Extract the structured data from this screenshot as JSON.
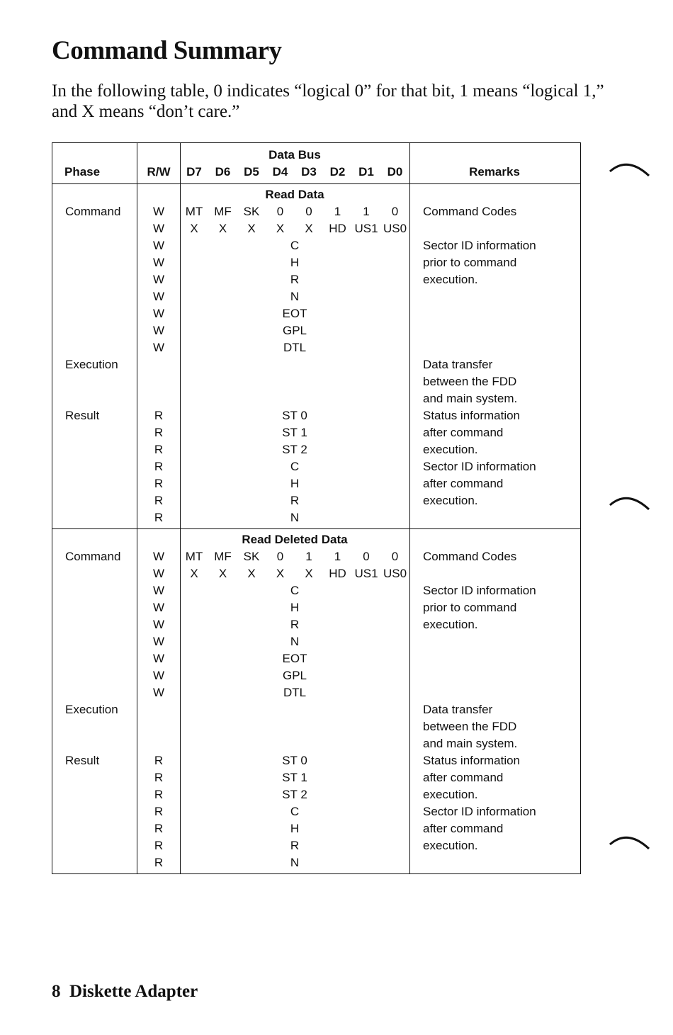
{
  "title": "Command Summary",
  "intro": "In the following table, 0 indicates “logical 0” for that bit, 1 means “logical 1,” and X means “don’t care.”",
  "table": {
    "headers": {
      "phase": "Phase",
      "rw": "R/W",
      "data_bus": "Data Bus",
      "bits": [
        "D7",
        "D6",
        "D5",
        "D4",
        "D3",
        "D2",
        "D1",
        "D0"
      ],
      "remarks": "Remarks"
    },
    "sections": [
      {
        "name": "Read Data",
        "rows": [
          {
            "phase": "Command",
            "rw": "W",
            "bits": [
              "MT",
              "MF",
              "SK",
              "0",
              "0",
              "1",
              "1",
              "0"
            ],
            "remark": "Command Codes"
          },
          {
            "phase": "",
            "rw": "W",
            "bits": [
              "X",
              "X",
              "X",
              "X",
              "X",
              "HD",
              "US1",
              "US0"
            ],
            "remark": ""
          },
          {
            "phase": "",
            "rw": "W",
            "value": "C",
            "remark": "Sector ID information"
          },
          {
            "phase": "",
            "rw": "W",
            "value": "H",
            "remark": "prior to command"
          },
          {
            "phase": "",
            "rw": "W",
            "value": "R",
            "remark": "execution."
          },
          {
            "phase": "",
            "rw": "W",
            "value": "N",
            "remark": ""
          },
          {
            "phase": "",
            "rw": "W",
            "value": "EOT",
            "remark": ""
          },
          {
            "phase": "",
            "rw": "W",
            "value": "GPL",
            "remark": ""
          },
          {
            "phase": "",
            "rw": "W",
            "value": "DTL",
            "remark": ""
          },
          {
            "phase": "Execution",
            "rw": "",
            "value": "",
            "remark": "Data transfer"
          },
          {
            "phase": "",
            "rw": "",
            "value": "",
            "remark": "between the FDD"
          },
          {
            "phase": "",
            "rw": "",
            "value": "",
            "remark": "and main system."
          },
          {
            "phase": "Result",
            "rw": "R",
            "value": "ST 0",
            "remark": "Status information"
          },
          {
            "phase": "",
            "rw": "R",
            "value": "ST 1",
            "remark": "after command"
          },
          {
            "phase": "",
            "rw": "R",
            "value": "ST 2",
            "remark": "execution."
          },
          {
            "phase": "",
            "rw": "R",
            "value": "C",
            "remark": "Sector ID information"
          },
          {
            "phase": "",
            "rw": "R",
            "value": "H",
            "remark": "after command"
          },
          {
            "phase": "",
            "rw": "R",
            "value": "R",
            "remark": "execution."
          },
          {
            "phase": "",
            "rw": "R",
            "value": "N",
            "remark": ""
          }
        ]
      },
      {
        "name": "Read Deleted Data",
        "rows": [
          {
            "phase": "Command",
            "rw": "W",
            "bits": [
              "MT",
              "MF",
              "SK",
              "0",
              "1",
              "1",
              "0",
              "0"
            ],
            "remark": "Command Codes"
          },
          {
            "phase": "",
            "rw": "W",
            "bits": [
              "X",
              "X",
              "X",
              "X",
              "X",
              "HD",
              "US1",
              "US0"
            ],
            "remark": ""
          },
          {
            "phase": "",
            "rw": "W",
            "value": "C",
            "remark": "Sector ID information"
          },
          {
            "phase": "",
            "rw": "W",
            "value": "H",
            "remark": "prior to command"
          },
          {
            "phase": "",
            "rw": "W",
            "value": "R",
            "remark": "execution."
          },
          {
            "phase": "",
            "rw": "W",
            "value": "N",
            "remark": ""
          },
          {
            "phase": "",
            "rw": "W",
            "value": "EOT",
            "remark": ""
          },
          {
            "phase": "",
            "rw": "W",
            "value": "GPL",
            "remark": ""
          },
          {
            "phase": "",
            "rw": "W",
            "value": "DTL",
            "remark": ""
          },
          {
            "phase": "Execution",
            "rw": "",
            "value": "",
            "remark": "Data transfer"
          },
          {
            "phase": "",
            "rw": "",
            "value": "",
            "remark": "between the FDD"
          },
          {
            "phase": "",
            "rw": "",
            "value": "",
            "remark": "and main system."
          },
          {
            "phase": "Result",
            "rw": "R",
            "value": "ST 0",
            "remark": "Status information"
          },
          {
            "phase": "",
            "rw": "R",
            "value": "ST 1",
            "remark": "after command"
          },
          {
            "phase": "",
            "rw": "R",
            "value": "ST 2",
            "remark": "execution."
          },
          {
            "phase": "",
            "rw": "R",
            "value": "C",
            "remark": "Sector ID information"
          },
          {
            "phase": "",
            "rw": "R",
            "value": "H",
            "remark": "after command"
          },
          {
            "phase": "",
            "rw": "R",
            "value": "R",
            "remark": "execution."
          },
          {
            "phase": "",
            "rw": "R",
            "value": "N",
            "remark": ""
          }
        ]
      }
    ]
  },
  "footer": {
    "page_number": "8",
    "section": "Diskette Adapter"
  }
}
